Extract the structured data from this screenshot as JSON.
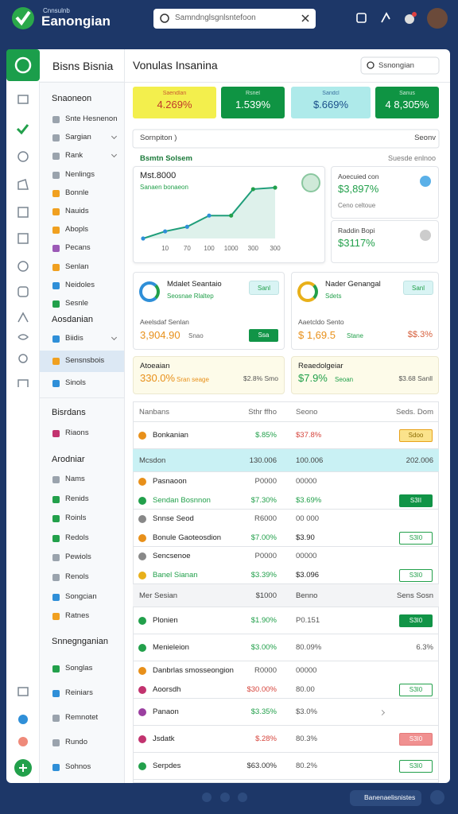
{
  "header": {
    "brand_top": "Cnnsulnb",
    "brand": "Eanongian",
    "search": "Samndnglsgnlsntefoon"
  },
  "sidebar": {
    "title": "Bisns Bisnia",
    "groups": [
      {
        "heading": "Snaoneon",
        "items": [
          {
            "label": "Snte Hesnenon",
            "color": "#9aa3ad"
          },
          {
            "label": "Sargian",
            "color": "#9aa3ad",
            "chevron": true
          },
          {
            "label": "Rank",
            "color": "#9aa3ad",
            "chevron": true
          },
          {
            "label": "Nenlings",
            "color": "#9aa3ad"
          },
          {
            "label": "Bonnle",
            "color": "#f0a020"
          },
          {
            "label": "Nauids",
            "color": "#f0a020"
          },
          {
            "label": "Abopls",
            "color": "#f0a020"
          },
          {
            "label": "Pecans",
            "color": "#9b59b6"
          },
          {
            "label": "Senlan",
            "color": "#f0a020"
          },
          {
            "label": "Neidoles",
            "color": "#2f8fd8"
          },
          {
            "label": "Sesnle",
            "color": "#22a04b"
          }
        ]
      },
      {
        "heading": "Aosdanian",
        "items": [
          {
            "label": "Biidis",
            "color": "#2f8fd8",
            "chevron": true
          },
          {
            "label": "Sensnsbois",
            "color": "#f0a020",
            "active": true
          },
          {
            "label": "Sinols",
            "color": "#2f8fd8"
          }
        ]
      },
      {
        "heading": "Bisrdans",
        "items": [
          {
            "label": "Riaons",
            "color": "#c2336f"
          }
        ]
      },
      {
        "heading": "Arodniar",
        "items": [
          {
            "label": "Nams",
            "color": "#9aa3ad"
          },
          {
            "label": "Renids",
            "color": "#22a04b"
          },
          {
            "label": "Roinls",
            "color": "#22a04b"
          },
          {
            "label": "Redols",
            "color": "#22a04b"
          },
          {
            "label": "Pewiols",
            "color": "#9aa3ad"
          },
          {
            "label": "Renols",
            "color": "#9aa3ad"
          },
          {
            "label": "Songcian",
            "color": "#2f8fd8"
          },
          {
            "label": "Ratnes",
            "color": "#f0a020"
          }
        ]
      },
      {
        "heading": "Snnegnganian",
        "items": [
          {
            "label": "Songlas",
            "color": "#22a04b"
          },
          {
            "label": "Reiniars",
            "color": "#2f8fd8"
          },
          {
            "label": "Remnotet",
            "color": "#9aa3ad"
          },
          {
            "label": "Rundo",
            "color": "#9aa3ad"
          },
          {
            "label": "Sohnos",
            "color": "#2f8fd8"
          }
        ]
      }
    ]
  },
  "main": {
    "title": "Vonulas Insanina",
    "search": "Ssnongian",
    "stats": [
      {
        "label": "Saendlan",
        "value": "4.269%",
        "bg": "#f3ef4d",
        "fg": "#c0392b"
      },
      {
        "label": "Rsnel",
        "value": "1.539%",
        "bg": "#0f9443",
        "fg": "#ffffff"
      },
      {
        "label": "Sandcl",
        "value": "$.669%",
        "bg": "#aeeaea",
        "fg": "#1a4f8a"
      },
      {
        "label": "Sanus",
        "value": "4 8,305%",
        "bg": "#0f9443",
        "fg": "#ffffff"
      }
    ],
    "filter": {
      "left": "Sornpiton )",
      "right": "Seonv"
    },
    "overview": {
      "title": "Bsmtn Solsem",
      "right": "Suesde enlnoo",
      "chart": {
        "title": "Mst.8000",
        "subtitle": "Sanaen bonaeon",
        "categories": [
          null,
          "10",
          "70",
          "100",
          "1000",
          "300",
          "300"
        ],
        "values": [
          0,
          1.4,
          2.3,
          4.5,
          4.5,
          9.7,
          10
        ],
        "ylim": [
          0,
          10
        ],
        "color": "#1f9e7a"
      },
      "side_cards": [
        {
          "label": "Aoecuied con",
          "value": "$3,897%",
          "note": "Ceno celtoue"
        },
        {
          "label": "Raddin Bopi",
          "value": "$3117%"
        }
      ]
    },
    "cards": [
      {
        "title": "Mdalet Seantaio",
        "subtitle": "Seosnae Rlaltep",
        "badge": "Sanl",
        "label": "Aeelsdaf Senlan",
        "value": "3,904.90",
        "unit": "Snao",
        "button": "Ssa"
      },
      {
        "title": "Nader Genangal",
        "subtitle": "Sdets",
        "badge": "Sanl",
        "label": "Aaetcldo Sento",
        "value": "$ 1,69.5",
        "unit": "Stane",
        "right": "$$.3%"
      }
    ],
    "summaries": [
      {
        "title": "Atoeaian",
        "value": "330.0%",
        "unit": "Sran seage",
        "right": "$2.8% Smo",
        "color": "#e8901a"
      },
      {
        "title": "Reaedolgeiar",
        "value": "$7.9%",
        "unit": "Seoan",
        "right": "$3.68 Sanll",
        "color": "#22a04b"
      }
    ],
    "table": {
      "header": [
        "Nanbans",
        "Sthr ffho",
        "Seono",
        "Seds. Dom"
      ],
      "rows": [
        {
          "lines": [
            {
              "cells": [
                "Bonkanian",
                "$.85%",
                "$37.8%"
              ],
              "icon": "#e8901a",
              "colors": [
                "#22a04b",
                "#d6453d"
              ]
            }
          ],
          "badge": {
            "text": "Sdoo",
            "style": "yellow"
          }
        },
        {
          "section": [
            "Mcsdon",
            "130.006",
            "100.006",
            "202.006"
          ],
          "bg": "#c9f1f4"
        },
        {
          "lines": [
            {
              "cells": [
                "Pasnaoon",
                "P0000",
                "00000"
              ],
              "icon": "#e8901a",
              "colors": [
                "#555",
                "#555"
              ]
            },
            {
              "cells": [
                "Sendan Bosnnon",
                "$7.30%",
                "$3.69%"
              ],
              "icon": "#22a04b",
              "colors": [
                "#22a04b",
                "#22a04b"
              ],
              "name_color": "#22a04b"
            }
          ],
          "badge": {
            "text": "S3II",
            "style": "solid"
          }
        },
        {
          "lines": [
            {
              "cells": [
                "Snnse Seod",
                "R6000",
                "00 000"
              ],
              "icon": "#888",
              "colors": [
                "#555",
                "#555"
              ]
            },
            {
              "cells": [
                "Bonule Gaoteosdion",
                "$7.00%",
                "$3.90"
              ],
              "icon": "#e8901a",
              "colors": [
                "#22a04b",
                "#222"
              ]
            }
          ],
          "badge": {
            "text": "S3I0",
            "style": "outline"
          }
        },
        {
          "lines": [
            {
              "cells": [
                "Sencsenoe",
                "P0000",
                "00000"
              ],
              "icon": "#888",
              "colors": [
                "#555",
                "#555"
              ]
            },
            {
              "cells": [
                "Banel Sianan",
                "$3.39%",
                "$3.096"
              ],
              "icon": "#e8b01a",
              "colors": [
                "#22a04b",
                "#222"
              ],
              "name_color": "#22a04b"
            }
          ],
          "badge": {
            "text": "S3I0",
            "style": "outline"
          }
        },
        {
          "section": [
            "Mer Sesian",
            "$1000",
            "Benno",
            "Sens Sosn"
          ],
          "bg": "#f3f4f6"
        },
        {
          "lines": [
            {
              "cells": [
                "Plonien",
                "$1.90%",
                "P0.151"
              ],
              "icon": "#22a04b",
              "colors": [
                "#22a04b",
                "#555"
              ]
            }
          ],
          "badge": {
            "text": "S3I0",
            "style": "solid"
          }
        },
        {
          "lines": [
            {
              "cells": [
                "Menieleion",
                "$3.00%",
                "80.09%"
              ],
              "icon": "#22a04b",
              "colors": [
                "#22a04b",
                "#555"
              ]
            }
          ],
          "note": "6.3%"
        },
        {
          "lines": [
            {
              "cells": [
                "Danbrlas smosseongion",
                "R0000",
                "00000"
              ],
              "icon": "#e8901a",
              "colors": [
                "#555",
                "#555"
              ]
            },
            {
              "cells": [
                "Aoorsdh",
                "$30.00%",
                "80.00"
              ],
              "icon": "#c2336f",
              "colors": [
                "#d6453d",
                "#555"
              ]
            }
          ],
          "badge": {
            "text": "S3I0",
            "style": "outline"
          }
        },
        {
          "lines": [
            {
              "cells": [
                "Panaon",
                "$3.35%",
                "$3.0%"
              ],
              "icon": "#9b3fa0",
              "colors": [
                "#22a04b",
                "#555"
              ]
            }
          ]
        },
        {
          "lines": [
            {
              "cells": [
                "Jsdatk",
                "$.28%",
                "80.3%"
              ],
              "icon": "#c2336f",
              "colors": [
                "#d6453d",
                "#555"
              ]
            }
          ],
          "badge": {
            "text": "S3I0",
            "style": "red"
          }
        },
        {
          "lines": [
            {
              "cells": [
                "Serpdes",
                "$63.00%",
                "80.2%"
              ],
              "icon": "#22a04b",
              "colors": [
                "#333",
                "#555"
              ]
            }
          ],
          "badge": {
            "text": "S3I0",
            "style": "outline"
          }
        }
      ]
    }
  },
  "footer": {
    "pill": "Banenaelisnistes"
  }
}
